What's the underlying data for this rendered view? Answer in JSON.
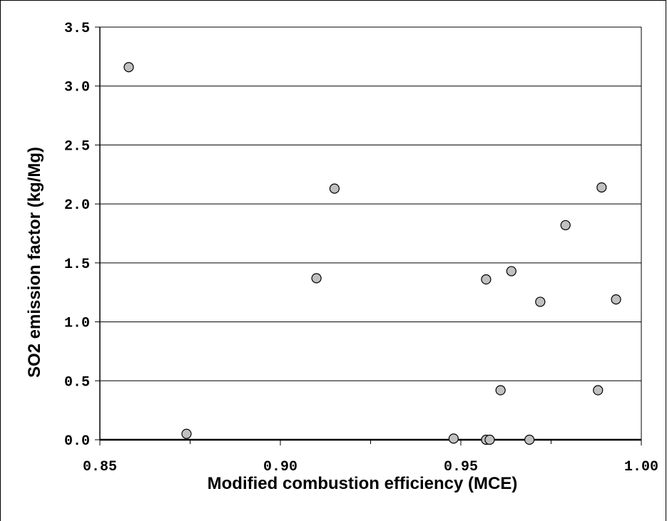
{
  "chart_data": {
    "type": "scatter",
    "title": "",
    "xlabel": "Modified combustion efficiency (MCE)",
    "ylabel": "SO2 emission factor (kg/Mg)",
    "xlim": [
      0.85,
      1.0
    ],
    "ylim": [
      0.0,
      3.5
    ],
    "x_ticks": [
      "0.85",
      "0.90",
      "0.95",
      "1.00"
    ],
    "y_ticks": [
      "0.0",
      "0.5",
      "1.0",
      "1.5",
      "2.0",
      "2.5",
      "3.0",
      "3.5"
    ],
    "x_tick_values": [
      0.85,
      0.9,
      0.95,
      1.0
    ],
    "y_tick_values": [
      0.0,
      0.5,
      1.0,
      1.5,
      2.0,
      2.5,
      3.0,
      3.5
    ],
    "grid": "horizontal",
    "legend": "none",
    "marker_color": "#c0c0c0",
    "series": [
      {
        "points": [
          {
            "x": 0.858,
            "y": 3.16
          },
          {
            "x": 0.874,
            "y": 0.05
          },
          {
            "x": 0.91,
            "y": 1.37
          },
          {
            "x": 0.915,
            "y": 2.13
          },
          {
            "x": 0.948,
            "y": 0.01
          },
          {
            "x": 0.957,
            "y": 0.0
          },
          {
            "x": 0.957,
            "y": 1.36
          },
          {
            "x": 0.958,
            "y": 0.0
          },
          {
            "x": 0.961,
            "y": 0.42
          },
          {
            "x": 0.964,
            "y": 1.43
          },
          {
            "x": 0.969,
            "y": 0.0
          },
          {
            "x": 0.972,
            "y": 1.17
          },
          {
            "x": 0.979,
            "y": 1.82
          },
          {
            "x": 0.988,
            "y": 0.42
          },
          {
            "x": 0.989,
            "y": 2.14
          },
          {
            "x": 0.993,
            "y": 1.19
          }
        ]
      }
    ]
  }
}
